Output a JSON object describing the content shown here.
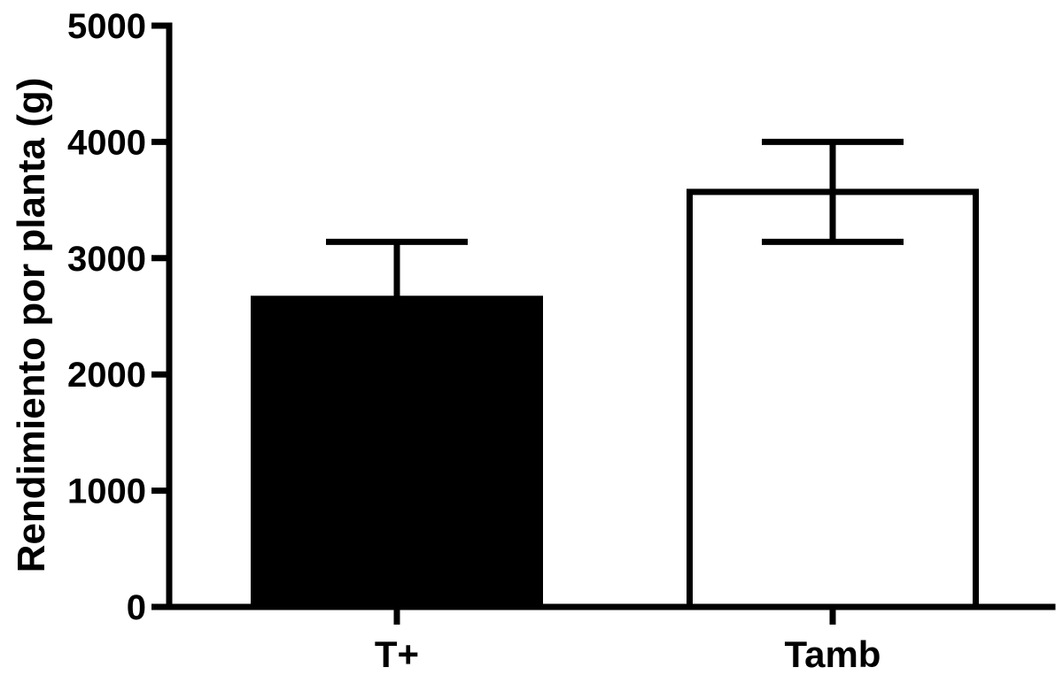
{
  "chart_data": {
    "type": "bar",
    "title": "",
    "xlabel": "",
    "ylabel": "Rendimiento por planta (g)",
    "ylim": [
      0,
      5000
    ],
    "yticks": [
      0,
      1000,
      2000,
      3000,
      4000,
      5000
    ],
    "grid": false,
    "legend": "none",
    "categories": [
      "T+",
      "Tamb"
    ],
    "values": [
      2650,
      3570
    ],
    "error_upper": [
      3140,
      4000
    ],
    "error_lower": [
      null,
      3140
    ],
    "bar_fill": [
      "#000000",
      "#ffffff"
    ],
    "stroke_color": "#000000"
  }
}
